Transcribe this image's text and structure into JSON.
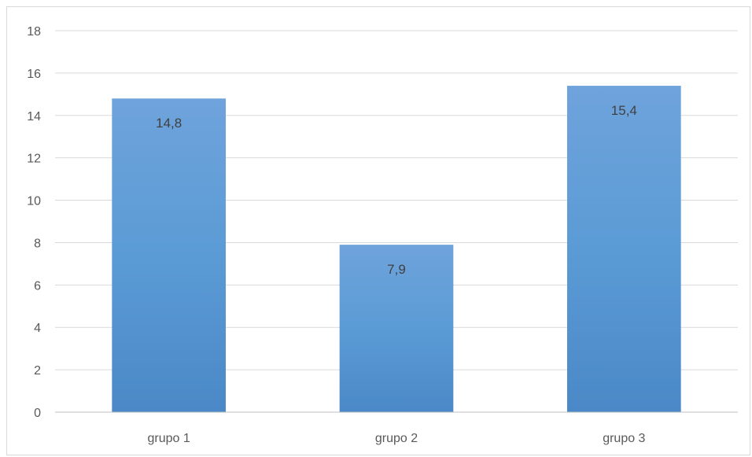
{
  "chart_data": {
    "type": "bar",
    "categories": [
      "grupo 1",
      "grupo 2",
      "grupo 3"
    ],
    "values": [
      14.8,
      7.9,
      15.4
    ],
    "data_labels": [
      "14,8",
      "7,9",
      "15,4"
    ],
    "y_ticks": [
      0,
      2,
      4,
      6,
      8,
      10,
      12,
      14,
      16,
      18
    ],
    "ylim": [
      0,
      18
    ],
    "grid": true,
    "legend": "none",
    "title": "",
    "xlabel": "",
    "ylabel": "",
    "colors": {
      "bar_top": "#6fa3dc",
      "bar_mid": "#5b9bd5",
      "bar_bottom": "#4a88c7",
      "gridline": "#d9d9d9",
      "axis": "#bfbfbf"
    }
  }
}
